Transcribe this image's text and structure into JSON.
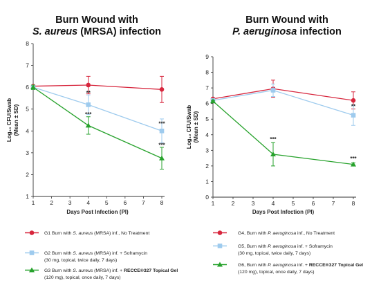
{
  "chart_data": [
    {
      "type": "line",
      "title_line1": "Burn Wound with",
      "title_line2_italic": "S. aureus",
      "title_line2_rest": " (MRSA) infection",
      "xlabel": "Days Post Infection (PI)",
      "ylabel_line1": "Log₁₀ CFU/Swab",
      "ylabel_line2": "(Mean ± SD)",
      "x": [
        1,
        4,
        8
      ],
      "xticks": [
        "1",
        "2",
        "3",
        "4",
        "5",
        "6",
        "7",
        "8"
      ],
      "ylim": [
        1,
        8
      ],
      "yticks": [
        "1",
        "2",
        "3",
        "4",
        "5",
        "6",
        "7",
        "8"
      ],
      "series": [
        {
          "name": "G1",
          "color": "#d7263d",
          "marker": "circle",
          "values": [
            6.05,
            6.1,
            5.9
          ],
          "err": [
            0.05,
            0.4,
            0.6
          ],
          "legend_parts": [
            {
              "t": "G1 Burn with ",
              "s": "n"
            },
            {
              "t": "S. aureus",
              "s": "i"
            },
            {
              "t": " (MRSA) inf., No Treatment",
              "s": "n"
            }
          ],
          "legend_line2": []
        },
        {
          "name": "G2",
          "color": "#9ecbee",
          "marker": "square",
          "values": [
            6.0,
            5.2,
            4.0
          ],
          "err": [
            0.1,
            0.45,
            0.55
          ],
          "legend_parts": [
            {
              "t": "G2 Burn with ",
              "s": "n"
            },
            {
              "t": "S. aureus",
              "s": "i"
            },
            {
              "t": " (MRSA) inf. + Soframycin",
              "s": "n"
            }
          ],
          "legend_line2": [
            {
              "t": "(30 mg, topical, twice daily, 7 days)",
              "s": "n"
            }
          ]
        },
        {
          "name": "G3",
          "color": "#27a22c",
          "marker": "triangle",
          "values": [
            6.0,
            4.25,
            2.75
          ],
          "err": [
            0.1,
            0.4,
            0.5
          ],
          "legend_parts": [
            {
              "t": "G3 Burn with ",
              "s": "n"
            },
            {
              "t": "S. aureus",
              "s": "i"
            },
            {
              "t": " (MRSA) inf. + ",
              "s": "n"
            },
            {
              "t": "RECCE®327 Topical Gel",
              "s": "b"
            }
          ],
          "legend_line2": [
            {
              "t": "(120 mg), topical, once daily, 7 days)",
              "s": "n"
            }
          ]
        }
      ],
      "annotations": [
        {
          "text": "**",
          "x": 4,
          "y": 5.65
        },
        {
          "text": "***",
          "x": 4,
          "y": 4.67
        },
        {
          "text": "***",
          "x": 8,
          "y": 4.25
        },
        {
          "text": "***",
          "x": 8,
          "y": 3.27
        }
      ]
    },
    {
      "type": "line",
      "title_line1": "Burn Wound with",
      "title_line2_italic": "P. aeruginosa",
      "title_line2_rest": " infection",
      "xlabel": "Days Post Infection (PI)",
      "ylabel_line1": "Log₁₀ CFU/Swab",
      "ylabel_line2": "(Mean ± SD)",
      "x": [
        1,
        4,
        8
      ],
      "xticks": [
        "1",
        "2",
        "3",
        "4",
        "5",
        "6",
        "7",
        "8"
      ],
      "ylim": [
        0,
        9
      ],
      "yticks": [
        "0",
        "1",
        "2",
        "3",
        "4",
        "5",
        "6",
        "7",
        "8",
        "9"
      ],
      "series": [
        {
          "name": "G4",
          "color": "#d7263d",
          "marker": "circle",
          "values": [
            6.3,
            6.95,
            6.2
          ],
          "err": [
            0.05,
            0.55,
            0.55
          ],
          "legend_parts": [
            {
              "t": "G4, Burn with ",
              "s": "n"
            },
            {
              "t": "P. aeruginosa",
              "s": "i"
            },
            {
              "t": " inf., No Treatment",
              "s": "n"
            }
          ],
          "legend_line2": []
        },
        {
          "name": "G5",
          "color": "#9ecbee",
          "marker": "square",
          "values": [
            6.2,
            6.85,
            5.25
          ],
          "err": [
            0.05,
            0.4,
            0.65
          ],
          "legend_parts": [
            {
              "t": "G5,  Burn with ",
              "s": "n"
            },
            {
              "t": "P. aeruginosa",
              "s": "i"
            },
            {
              "t": " inf. + Soframycin",
              "s": "n"
            }
          ],
          "legend_line2": [
            {
              "t": "(30 mg, topical, twice daily, 7 days)",
              "s": "n"
            }
          ]
        },
        {
          "name": "G6",
          "color": "#27a22c",
          "marker": "triangle",
          "values": [
            6.15,
            2.75,
            2.1
          ],
          "err": [
            0.05,
            0.75,
            0.1
          ],
          "legend_parts": [
            {
              "t": "G6, Burn with ",
              "s": "n"
            },
            {
              "t": "P. aeruginosa",
              "s": "i"
            },
            {
              "t": " inf. + ",
              "s": "n"
            },
            {
              "t": "RECCE®327 Topical Gel",
              "s": "b"
            }
          ],
          "legend_line2": [
            {
              "t": "(120 mg), topical, once daily, 7 days)",
              "s": "n"
            }
          ]
        }
      ],
      "annotations": [
        {
          "text": "**",
          "x": 8,
          "y": 5.7
        },
        {
          "text": "***",
          "x": 4,
          "y": 3.6
        },
        {
          "text": "***",
          "x": 8,
          "y": 2.35
        }
      ]
    }
  ]
}
